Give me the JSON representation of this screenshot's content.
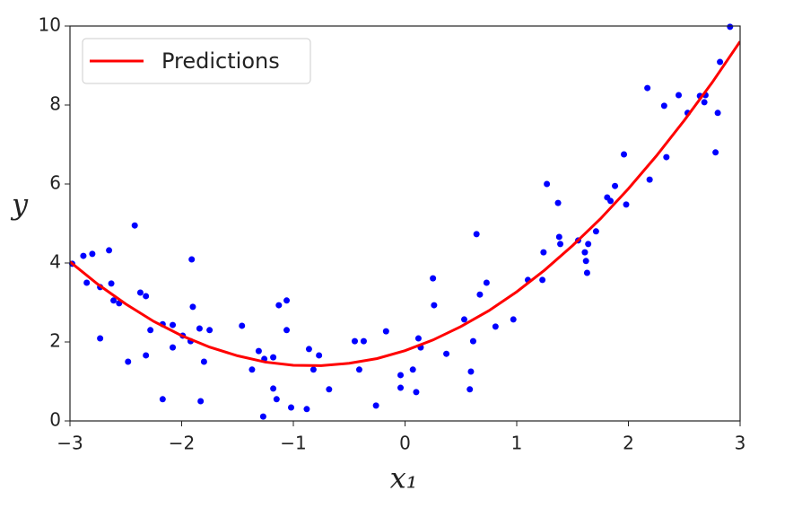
{
  "chart_data": {
    "type": "scatter",
    "xlabel": "x₁",
    "ylabel": "y",
    "xlim": [
      -3,
      3
    ],
    "ylim": [
      0,
      10
    ],
    "xticks": [
      {
        "value": -3,
        "label": "−3"
      },
      {
        "value": -2,
        "label": "−2"
      },
      {
        "value": -1,
        "label": "−1"
      },
      0,
      1,
      2,
      3
    ],
    "yticks": [
      0,
      2,
      4,
      6,
      8,
      10
    ],
    "legend": "upper left",
    "series": [
      {
        "type": "line",
        "name": "Predictions",
        "color": "#ff0000",
        "x": [
          -3,
          -2.75,
          -2.5,
          -2.25,
          -2,
          -1.75,
          -1.5,
          -1.25,
          -1,
          -0.75,
          -0.5,
          -0.25,
          0,
          0.25,
          0.5,
          0.75,
          1,
          1.25,
          1.5,
          1.75,
          2,
          2.25,
          2.5,
          2.75,
          3
        ],
        "values": [
          4.03,
          3.46,
          2.96,
          2.52,
          2.16,
          1.87,
          1.65,
          1.49,
          1.41,
          1.4,
          1.46,
          1.58,
          1.78,
          2.05,
          2.39,
          2.79,
          3.27,
          3.82,
          4.44,
          5.12,
          5.88,
          6.71,
          7.61,
          8.57,
          9.61
        ]
      },
      {
        "type": "scatter",
        "color": "#0000ff",
        "x": [
          -2.98,
          -2.88,
          -2.8,
          -2.85,
          -2.73,
          -2.73,
          -2.65,
          -2.63,
          -2.61,
          -2.56,
          -2.48,
          -2.42,
          -2.37,
          -2.32,
          -2.32,
          -2.28,
          -2.17,
          -2.17,
          -2.08,
          -2.08,
          -1.99,
          -1.92,
          -1.91,
          -1.9,
          -1.84,
          -1.83,
          -1.8,
          -1.75,
          -1.46,
          -1.37,
          -1.31,
          -1.27,
          -1.26,
          -1.18,
          -1.18,
          -1.15,
          -1.13,
          -1.06,
          -1.06,
          -1.02,
          -0.88,
          -0.86,
          -0.82,
          -0.77,
          -0.68,
          -0.45,
          -0.41,
          -0.37,
          -0.26,
          -0.17,
          -0.04,
          -0.04,
          0.07,
          0.1,
          0.12,
          0.14,
          0.25,
          0.26,
          0.37,
          0.53,
          0.58,
          0.59,
          0.61,
          0.64,
          0.67,
          0.73,
          0.81,
          0.97,
          1.1,
          1.23,
          1.24,
          1.27,
          1.37,
          1.38,
          1.39,
          1.55,
          1.61,
          1.62,
          1.63,
          1.64,
          1.71,
          1.81,
          1.84,
          1.88,
          1.96,
          1.98,
          2.17,
          2.19,
          2.32,
          2.34,
          2.45,
          2.53,
          2.64,
          2.68,
          2.69,
          2.78,
          2.8,
          2.82,
          2.91
        ],
        "values": [
          3.98,
          4.18,
          4.23,
          3.5,
          3.39,
          2.09,
          4.32,
          3.48,
          3.05,
          2.98,
          1.5,
          4.95,
          3.25,
          1.66,
          3.16,
          2.3,
          2.45,
          0.55,
          2.43,
          1.86,
          2.16,
          2.02,
          4.09,
          2.89,
          2.34,
          0.5,
          1.5,
          2.3,
          2.41,
          1.3,
          1.77,
          0.11,
          1.57,
          1.61,
          0.82,
          0.55,
          2.93,
          3.05,
          2.3,
          0.34,
          0.3,
          1.82,
          1.3,
          1.66,
          0.8,
          2.02,
          1.3,
          2.02,
          0.39,
          2.27,
          1.16,
          0.84,
          1.3,
          0.73,
          2.09,
          1.86,
          3.61,
          2.93,
          1.7,
          2.57,
          0.8,
          1.25,
          2.02,
          4.73,
          3.2,
          3.5,
          2.39,
          2.57,
          3.57,
          3.57,
          4.27,
          6.0,
          5.52,
          4.66,
          4.48,
          4.57,
          4.27,
          4.05,
          3.75,
          4.48,
          4.8,
          5.66,
          5.57,
          5.95,
          6.75,
          5.48,
          8.43,
          6.11,
          7.98,
          6.68,
          8.25,
          7.8,
          8.23,
          8.07,
          8.25,
          6.8,
          7.8,
          9.09,
          9.98
        ]
      }
    ]
  }
}
